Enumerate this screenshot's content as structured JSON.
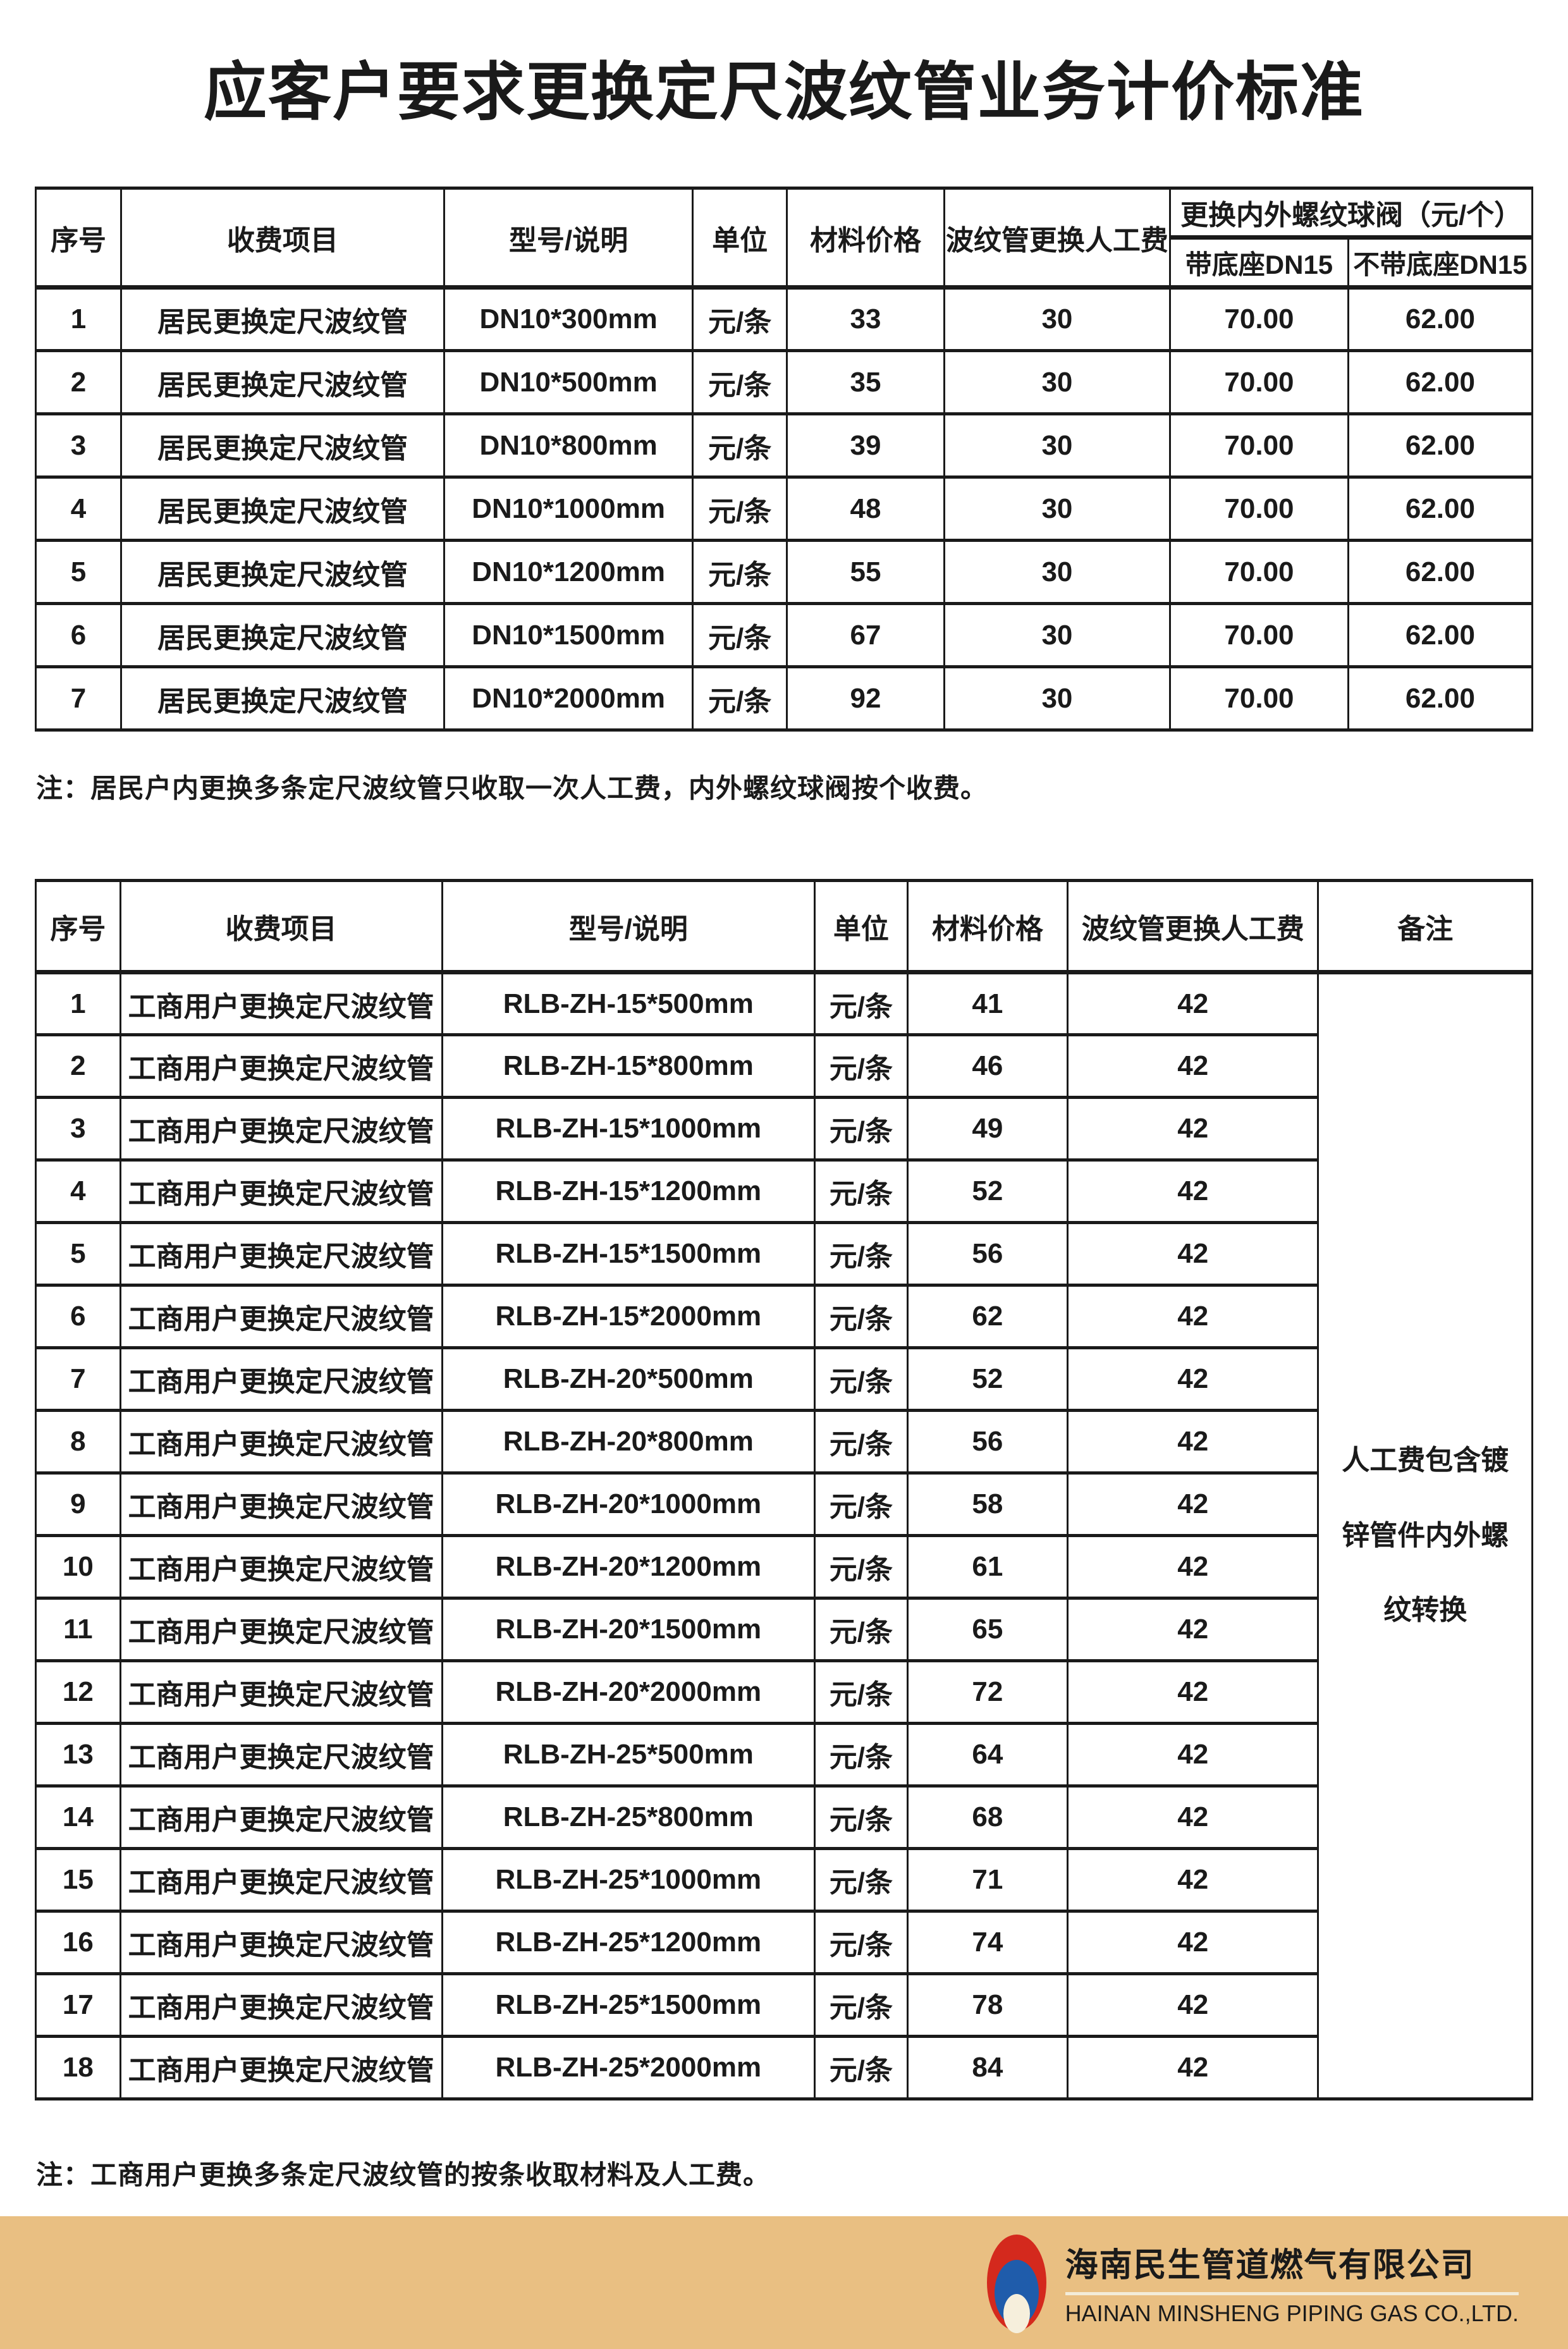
{
  "title": "应客户要求更换定尺波纹管业务计价标准",
  "table1": {
    "headers": {
      "index": "序号",
      "item": "收费项目",
      "model": "型号/说明",
      "unit": "单位",
      "material_price": "材料价格",
      "labor": "波纹管更换人工费",
      "valve_group": "更换内外螺纹球阀（元/个）",
      "valve_with_base": "带底座DN15",
      "valve_without_base": "不带底座DN15"
    },
    "rows": [
      {
        "index": "1",
        "item": "居民更换定尺波纹管",
        "model": "DN10*300mm",
        "unit": "元/条",
        "material_price": "33",
        "labor": "30",
        "with_base": "70.00",
        "without_base": "62.00"
      },
      {
        "index": "2",
        "item": "居民更换定尺波纹管",
        "model": "DN10*500mm",
        "unit": "元/条",
        "material_price": "35",
        "labor": "30",
        "with_base": "70.00",
        "without_base": "62.00"
      },
      {
        "index": "3",
        "item": "居民更换定尺波纹管",
        "model": "DN10*800mm",
        "unit": "元/条",
        "material_price": "39",
        "labor": "30",
        "with_base": "70.00",
        "without_base": "62.00"
      },
      {
        "index": "4",
        "item": "居民更换定尺波纹管",
        "model": "DN10*1000mm",
        "unit": "元/条",
        "material_price": "48",
        "labor": "30",
        "with_base": "70.00",
        "without_base": "62.00"
      },
      {
        "index": "5",
        "item": "居民更换定尺波纹管",
        "model": "DN10*1200mm",
        "unit": "元/条",
        "material_price": "55",
        "labor": "30",
        "with_base": "70.00",
        "without_base": "62.00"
      },
      {
        "index": "6",
        "item": "居民更换定尺波纹管",
        "model": "DN10*1500mm",
        "unit": "元/条",
        "material_price": "67",
        "labor": "30",
        "with_base": "70.00",
        "without_base": "62.00"
      },
      {
        "index": "7",
        "item": "居民更换定尺波纹管",
        "model": "DN10*2000mm",
        "unit": "元/条",
        "material_price": "92",
        "labor": "30",
        "with_base": "70.00",
        "without_base": "62.00"
      }
    ]
  },
  "note1": "注：居民户内更换多条定尺波纹管只收取一次人工费，内外螺纹球阀按个收费。",
  "table2": {
    "headers": {
      "index": "序号",
      "item": "收费项目",
      "model": "型号/说明",
      "unit": "单位",
      "material_price": "材料价格",
      "labor": "波纹管更换人工费",
      "remark": "备注"
    },
    "remark": "人工费包含镀\n锌管件内外螺\n纹转换",
    "rows": [
      {
        "index": "1",
        "item": "工商用户更换定尺波纹管",
        "model": "RLB-ZH-15*500mm",
        "unit": "元/条",
        "material_price": "41",
        "labor": "42"
      },
      {
        "index": "2",
        "item": "工商用户更换定尺波纹管",
        "model": "RLB-ZH-15*800mm",
        "unit": "元/条",
        "material_price": "46",
        "labor": "42"
      },
      {
        "index": "3",
        "item": "工商用户更换定尺波纹管",
        "model": "RLB-ZH-15*1000mm",
        "unit": "元/条",
        "material_price": "49",
        "labor": "42"
      },
      {
        "index": "4",
        "item": "工商用户更换定尺波纹管",
        "model": "RLB-ZH-15*1200mm",
        "unit": "元/条",
        "material_price": "52",
        "labor": "42"
      },
      {
        "index": "5",
        "item": "工商用户更换定尺波纹管",
        "model": "RLB-ZH-15*1500mm",
        "unit": "元/条",
        "material_price": "56",
        "labor": "42"
      },
      {
        "index": "6",
        "item": "工商用户更换定尺波纹管",
        "model": "RLB-ZH-15*2000mm",
        "unit": "元/条",
        "material_price": "62",
        "labor": "42"
      },
      {
        "index": "7",
        "item": "工商用户更换定尺波纹管",
        "model": "RLB-ZH-20*500mm",
        "unit": "元/条",
        "material_price": "52",
        "labor": "42"
      },
      {
        "index": "8",
        "item": "工商用户更换定尺波纹管",
        "model": "RLB-ZH-20*800mm",
        "unit": "元/条",
        "material_price": "56",
        "labor": "42"
      },
      {
        "index": "9",
        "item": "工商用户更换定尺波纹管",
        "model": "RLB-ZH-20*1000mm",
        "unit": "元/条",
        "material_price": "58",
        "labor": "42"
      },
      {
        "index": "10",
        "item": "工商用户更换定尺波纹管",
        "model": "RLB-ZH-20*1200mm",
        "unit": "元/条",
        "material_price": "61",
        "labor": "42"
      },
      {
        "index": "11",
        "item": "工商用户更换定尺波纹管",
        "model": "RLB-ZH-20*1500mm",
        "unit": "元/条",
        "material_price": "65",
        "labor": "42"
      },
      {
        "index": "12",
        "item": "工商用户更换定尺波纹管",
        "model": "RLB-ZH-20*2000mm",
        "unit": "元/条",
        "material_price": "72",
        "labor": "42"
      },
      {
        "index": "13",
        "item": "工商用户更换定尺波纹管",
        "model": "RLB-ZH-25*500mm",
        "unit": "元/条",
        "material_price": "64",
        "labor": "42"
      },
      {
        "index": "14",
        "item": "工商用户更换定尺波纹管",
        "model": "RLB-ZH-25*800mm",
        "unit": "元/条",
        "material_price": "68",
        "labor": "42"
      },
      {
        "index": "15",
        "item": "工商用户更换定尺波纹管",
        "model": "RLB-ZH-25*1000mm",
        "unit": "元/条",
        "material_price": "71",
        "labor": "42"
      },
      {
        "index": "16",
        "item": "工商用户更换定尺波纹管",
        "model": "RLB-ZH-25*1200mm",
        "unit": "元/条",
        "material_price": "74",
        "labor": "42"
      },
      {
        "index": "17",
        "item": "工商用户更换定尺波纹管",
        "model": "RLB-ZH-25*1500mm",
        "unit": "元/条",
        "material_price": "78",
        "labor": "42"
      },
      {
        "index": "18",
        "item": "工商用户更换定尺波纹管",
        "model": "RLB-ZH-25*2000mm",
        "unit": "元/条",
        "material_price": "84",
        "labor": "42"
      }
    ]
  },
  "note2": "注：工商用户更换多条定尺波纹管的按条收取材料及人工费。",
  "footer": {
    "company_cn": "海南民生管道燃气有限公司",
    "company_en": "HAINAN MINSHENG PIPING GAS CO.,LTD.",
    "band_color": "#e9bf82",
    "logo_red": "#d4291d",
    "logo_blue": "#1f5cab",
    "logo_flame": "#f6efdc",
    "divider_color": "#f3ecd9"
  }
}
